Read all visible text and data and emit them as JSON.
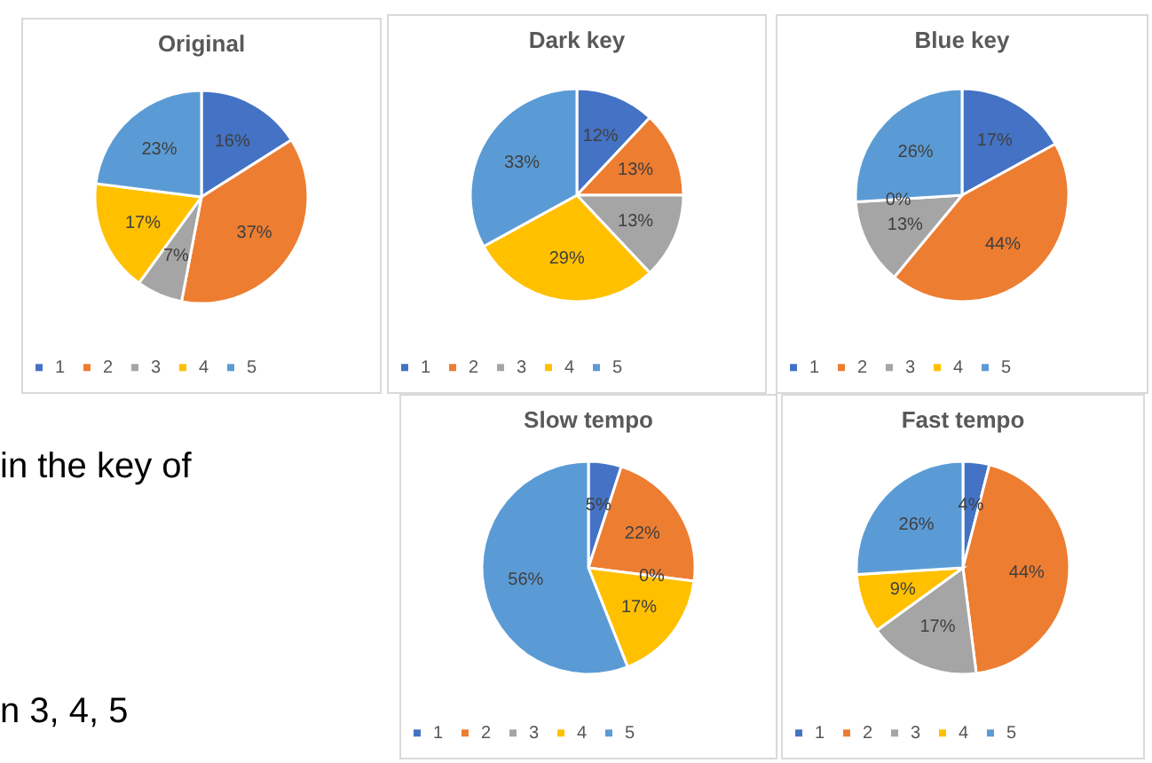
{
  "chart_data": [
    {
      "type": "pie",
      "title": "Original",
      "categories": [
        "1",
        "2",
        "3",
        "4",
        "5"
      ],
      "values": [
        16,
        37,
        7,
        17,
        23
      ],
      "value_labels": [
        "16%",
        "37%",
        "7%",
        "17%",
        "23%"
      ],
      "colors": [
        "#4472c4",
        "#ed7d31",
        "#a5a5a5",
        "#ffc000",
        "#5b9bd5"
      ],
      "legend": "bottom"
    },
    {
      "type": "pie",
      "title": "Dark key",
      "categories": [
        "1",
        "2",
        "3",
        "4",
        "5"
      ],
      "values": [
        12,
        13,
        13,
        29,
        33
      ],
      "value_labels": [
        "12%",
        "13%",
        "13%",
        "29%",
        "33%"
      ],
      "colors": [
        "#4472c4",
        "#ed7d31",
        "#a5a5a5",
        "#ffc000",
        "#5b9bd5"
      ],
      "legend": "bottom"
    },
    {
      "type": "pie",
      "title": "Blue key",
      "categories": [
        "1",
        "2",
        "3",
        "4",
        "5"
      ],
      "values": [
        17,
        44,
        13,
        0,
        26
      ],
      "value_labels": [
        "17%",
        "44%",
        "13%",
        "0%",
        "26%"
      ],
      "colors": [
        "#4472c4",
        "#ed7d31",
        "#a5a5a5",
        "#ffc000",
        "#5b9bd5"
      ],
      "legend": "bottom"
    },
    {
      "type": "other",
      "annotations": [
        "in the key of",
        "n 3, 4, 5"
      ]
    },
    {
      "type": "pie",
      "title": "Slow tempo",
      "categories": [
        "1",
        "2",
        "3",
        "4",
        "5"
      ],
      "values": [
        5,
        22,
        0,
        17,
        56
      ],
      "value_labels": [
        "5%",
        "22%",
        "0%",
        "17%",
        "56%"
      ],
      "colors": [
        "#4472c4",
        "#ed7d31",
        "#a5a5a5",
        "#ffc000",
        "#5b9bd5"
      ],
      "legend": "bottom"
    },
    {
      "type": "pie",
      "title": "Fast tempo",
      "categories": [
        "1",
        "2",
        "3",
        "4",
        "5"
      ],
      "values": [
        4,
        44,
        17,
        9,
        26
      ],
      "value_labels": [
        "4%",
        "44%",
        "17%",
        "9%",
        "26%"
      ],
      "colors": [
        "#4472c4",
        "#ed7d31",
        "#a5a5a5",
        "#ffc000",
        "#5b9bd5"
      ],
      "legend": "bottom"
    }
  ]
}
